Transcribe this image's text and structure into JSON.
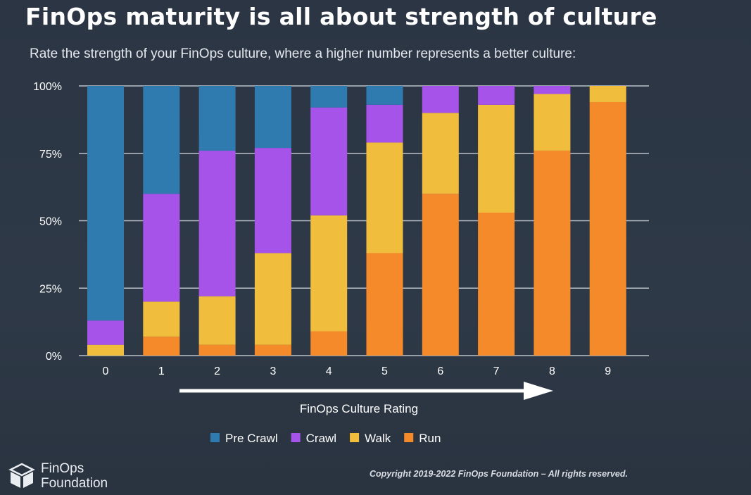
{
  "page": {
    "title": "FinOps maturity is all about strength of culture",
    "subtitle": "Rate the strength of your FinOps culture, where a higher number represents a better culture:",
    "copyright": "Copyright 2019-2022 FinOps Foundation – All rights reserved.",
    "logo": {
      "line1": "FinOps",
      "line2": "Foundation",
      "icon": "cube-logo-icon"
    }
  },
  "chart_data": {
    "type": "bar",
    "stacked": true,
    "title": "",
    "xlabel": "FinOps Culture Rating",
    "ylabel": "",
    "ylim": [
      0,
      100
    ],
    "y_ticks": [
      0,
      25,
      50,
      75,
      100
    ],
    "y_tick_labels": [
      "0%",
      "25%",
      "50%",
      "75%",
      "100%"
    ],
    "categories": [
      "0",
      "1",
      "2",
      "3",
      "4",
      "5",
      "6",
      "7",
      "8",
      "9"
    ],
    "series": [
      {
        "name": "Run",
        "color": "#f48a2a",
        "values": [
          0,
          7,
          4,
          4,
          9,
          38,
          60,
          53,
          76,
          94
        ]
      },
      {
        "name": "Walk",
        "color": "#f1bd3c",
        "values": [
          4,
          13,
          18,
          34,
          43,
          41,
          30,
          40,
          21,
          6
        ]
      },
      {
        "name": "Crawl",
        "color": "#a653ea",
        "values": [
          9,
          40,
          54,
          39,
          40,
          14,
          10,
          7,
          3,
          0
        ]
      },
      {
        "name": "Pre Crawl",
        "color": "#2f7bb0",
        "values": [
          87,
          40,
          24,
          23,
          8,
          7,
          0,
          0,
          0,
          0
        ]
      }
    ],
    "legend_order": [
      "Pre Crawl",
      "Crawl",
      "Walk",
      "Run"
    ],
    "legend_position": "bottom",
    "grid": true,
    "annotations": [
      "arrow pointing right along x-axis indicating increasing culture rating"
    ]
  }
}
